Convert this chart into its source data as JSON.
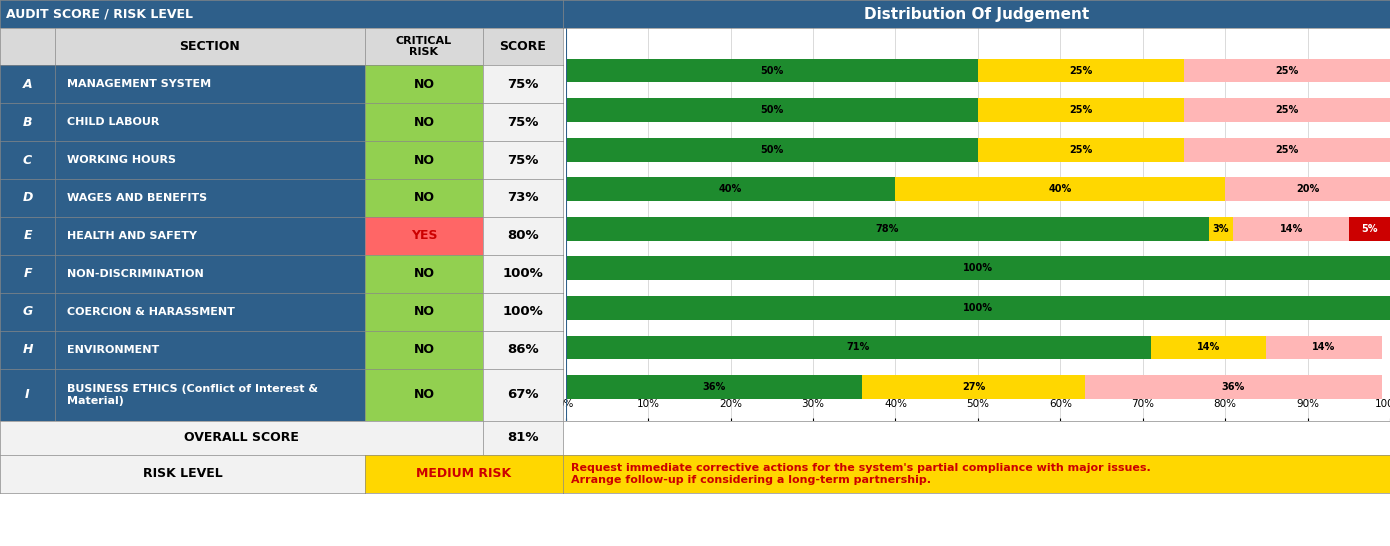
{
  "title_left": "AUDIT SCORE / RISK LEVEL",
  "title_right": "Distribution Of Judgement",
  "header_bg": "#2E5F8A",
  "subheader_bg": "#D9D9D9",
  "row_bg": "#2E5F8A",
  "green_no_bg": "#92D050",
  "red_yes_bg": "#FF6666",
  "medium_risk_bg": "#FFD700",
  "medium_risk_text": "#CC0000",
  "note_text_color": "#CC0000",
  "rows": [
    {
      "letter": "A",
      "section": "MANAGEMENT SYSTEM",
      "critical_risk": "NO",
      "critical_risk_bg": "#92D050",
      "score": "75%",
      "C": 50,
      "OFI": 25,
      "MinorNC": 25,
      "MajorNC": 0
    },
    {
      "letter": "B",
      "section": "CHILD LABOUR",
      "critical_risk": "NO",
      "critical_risk_bg": "#92D050",
      "score": "75%",
      "C": 50,
      "OFI": 25,
      "MinorNC": 25,
      "MajorNC": 0
    },
    {
      "letter": "C",
      "section": "WORKING HOURS",
      "critical_risk": "NO",
      "critical_risk_bg": "#92D050",
      "score": "75%",
      "C": 50,
      "OFI": 25,
      "MinorNC": 25,
      "MajorNC": 0
    },
    {
      "letter": "D",
      "section": "WAGES AND BENEFITS",
      "critical_risk": "NO",
      "critical_risk_bg": "#92D050",
      "score": "73%",
      "C": 40,
      "OFI": 40,
      "MinorNC": 20,
      "MajorNC": 0
    },
    {
      "letter": "E",
      "section": "HEALTH AND SAFETY",
      "critical_risk": "YES",
      "critical_risk_bg": "#FF6666",
      "score": "80%",
      "C": 78,
      "OFI": 3,
      "MinorNC": 14,
      "MajorNC": 5
    },
    {
      "letter": "F",
      "section": "NON-DISCRIMINATION",
      "critical_risk": "NO",
      "critical_risk_bg": "#92D050",
      "score": "100%",
      "C": 100,
      "OFI": 0,
      "MinorNC": 0,
      "MajorNC": 0
    },
    {
      "letter": "G",
      "section": "COERCION & HARASSMENT",
      "critical_risk": "NO",
      "critical_risk_bg": "#92D050",
      "score": "100%",
      "C": 100,
      "OFI": 0,
      "MinorNC": 0,
      "MajorNC": 0
    },
    {
      "letter": "H",
      "section": "ENVIRONMENT",
      "critical_risk": "NO",
      "critical_risk_bg": "#92D050",
      "score": "86%",
      "C": 71,
      "OFI": 14,
      "MinorNC": 14,
      "MajorNC": 0
    },
    {
      "letter": "I",
      "section": "BUSINESS ETHICS (Conflict of Interest &\nMaterial)",
      "critical_risk": "NO",
      "critical_risk_bg": "#92D050",
      "score": "67%",
      "C": 36,
      "OFI": 27,
      "MinorNC": 36,
      "MajorNC": 0
    }
  ],
  "overall_score": "81%",
  "risk_level": "MEDIUM RISK",
  "risk_note": "Request immediate corrective actions for the system's partial compliance with major issues.\nArrange follow-up if considering a long-term partnership.",
  "bar_colors": {
    "C": "#1E8B2E",
    "OFI": "#FFD700",
    "MinorNC": "#FFB6B6",
    "MajorNC": "#CC0000"
  }
}
